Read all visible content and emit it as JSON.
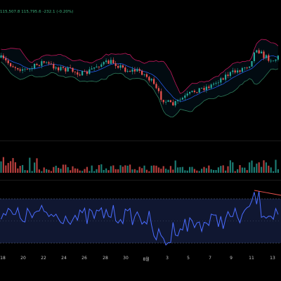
{
  "chart": {
    "ohlc_text": "115,507.8  115,795.6  -232.1 (-0.20%)",
    "colors": {
      "background": "#000000",
      "up": "#26a69a",
      "down": "#ef5350",
      "bb_upper": "#c2185b",
      "bb_lower": "#2e7d5b",
      "bb_basis": "#2962ff",
      "bb_fill": "#2196f3",
      "rsi_line": "#4a6cff",
      "rsi_band": "#1e2a5a",
      "rsi_level": "#5d6b8a",
      "axis_text": "#c7c7c7"
    },
    "time_axis_labels": [
      "18",
      "20",
      "22",
      "24",
      "26",
      "28",
      "30",
      "8월",
      "3",
      "5",
      "7",
      "9",
      "11",
      "13"
    ]
  }
}
